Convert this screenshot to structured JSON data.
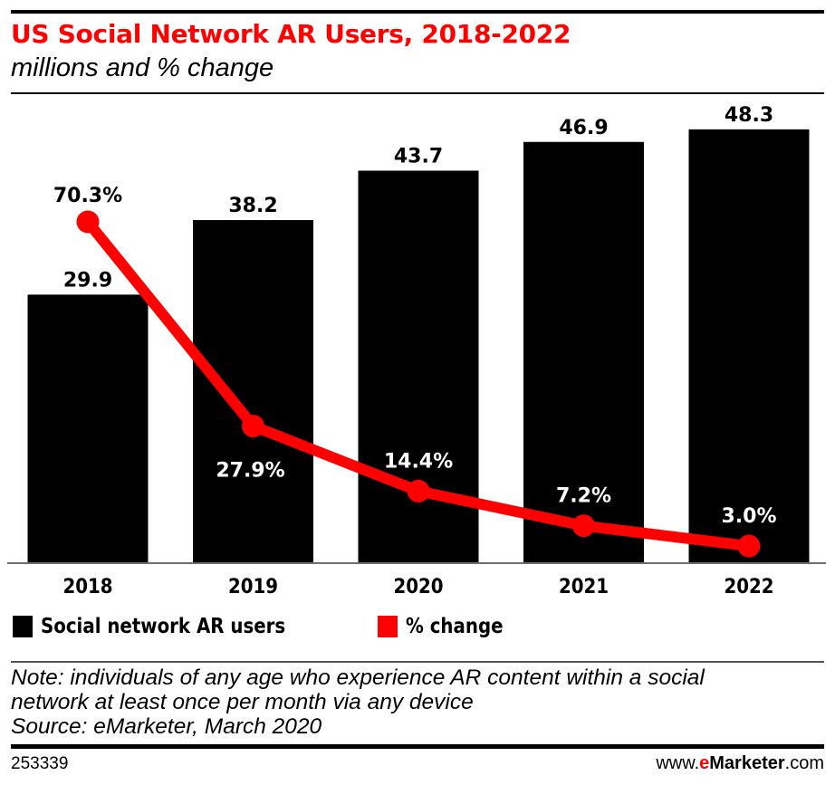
{
  "header": {
    "title": "US Social Network AR Users, 2018-2022",
    "subtitle": "millions and % change"
  },
  "colors": {
    "bar": "#000000",
    "line": "#ff0000",
    "title": "#ff0000"
  },
  "chart_data": {
    "type": "bar",
    "combo": "bar+line",
    "title": "US Social Network AR Users, 2018-2022",
    "subtitle": "millions and % change",
    "categories": [
      "2018",
      "2019",
      "2020",
      "2021",
      "2022"
    ],
    "series": [
      {
        "name": "Social network AR users",
        "type": "bar",
        "unit": "millions",
        "values": [
          29.9,
          38.2,
          43.7,
          46.9,
          48.3
        ],
        "labels": [
          "29.9",
          "38.2",
          "43.7",
          "46.9",
          "48.3"
        ]
      },
      {
        "name": "% change",
        "type": "line",
        "unit": "%",
        "values": [
          70.3,
          27.9,
          14.4,
          7.2,
          3.0
        ],
        "labels": [
          "70.3%",
          "27.9%",
          "14.4%",
          "7.2%",
          "3.0%"
        ]
      }
    ],
    "xlabel": "",
    "ylabel": "",
    "ylim": [
      0,
      50
    ],
    "grid": false,
    "legend_position": "bottom-left"
  },
  "legend": {
    "items": [
      {
        "label": "Social network AR users",
        "color": "#000000"
      },
      {
        "label": "% change",
        "color": "#ff0000"
      }
    ]
  },
  "footer": {
    "note_line1": "Note: individuals of any age who experience AR content within a social",
    "note_line2": "network at least once per month via any device",
    "source": "Source: eMarketer, March 2020",
    "chart_id": "253339",
    "site_prefix": "www.",
    "site_e": "e",
    "site_brand": "Marketer",
    "site_suffix": ".com"
  }
}
